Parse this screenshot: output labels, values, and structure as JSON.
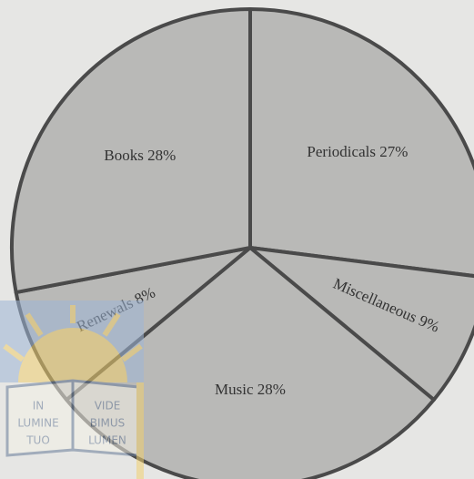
{
  "chart_data": {
    "type": "pie",
    "categories": [
      "Periodicals",
      "Miscellaneous",
      "Music",
      "Renewals",
      "Books"
    ],
    "values": [
      27,
      9,
      28,
      8,
      28
    ],
    "value_labels": [
      "27%",
      "9%",
      "28%",
      "8%",
      "28%"
    ],
    "color": "#b9b9b7",
    "edge_color": "#4a4a4a"
  },
  "logo": {
    "left": [
      "IN",
      "LUMINE",
      "TUO"
    ],
    "right": [
      "VIDE",
      "BIMUS",
      "LUMEN"
    ]
  }
}
